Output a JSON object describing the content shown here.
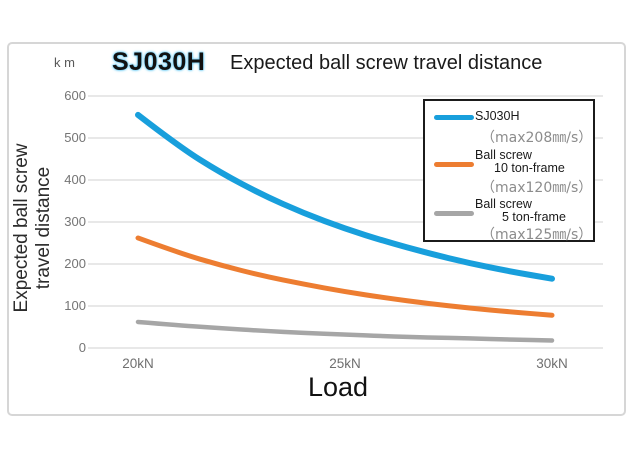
{
  "title": {
    "model": "SJ030H",
    "text": "Expected ball screw travel distance"
  },
  "y_unit_label": "k m",
  "y_axis_title": {
    "line1": "Expected ball screw",
    "line2": "travel distance"
  },
  "axes": {
    "y_ticks": [
      "600",
      "500",
      "400",
      "300",
      "200",
      "100",
      "0"
    ],
    "x_ticks": [
      "20kN",
      "25kN",
      "30kN"
    ],
    "x_label": "Load"
  },
  "colors": {
    "series_blue": "#189fdc",
    "series_orange": "#ed7d31",
    "series_gray": "#a6a6a6",
    "gridline": "#d9d9d9",
    "frame_border": "#d6d6d6",
    "legend_border": "#1b1b1b"
  },
  "legend": {
    "items": [
      {
        "label": "SJ030H",
        "sub": "",
        "max": "（max208㎜/s）",
        "color": "#189fdc"
      },
      {
        "label": "Ball screw",
        "sub": "10 ton-frame",
        "max": "（max120㎜/s）",
        "color": "#ed7d31"
      },
      {
        "label": "Ball screw",
        "sub": "5 ton-frame",
        "max": "（max125㎜/s）",
        "color": "#a6a6a6"
      }
    ]
  },
  "chart_data": {
    "type": "line",
    "title": "SJ030H Expected ball screw travel distance",
    "xlabel": "Load",
    "ylabel": "Expected ball screw travel distance (km)",
    "x_unit": "kN",
    "y_unit": "km",
    "xlim": [
      20,
      30
    ],
    "ylim": [
      0,
      600
    ],
    "x": [
      20,
      21,
      22,
      23,
      24,
      25,
      26,
      27,
      28,
      29,
      30
    ],
    "xtick_labels": [
      "20kN",
      "25kN",
      "30kN"
    ],
    "ytick_values": [
      0,
      100,
      200,
      300,
      400,
      500,
      600
    ],
    "grid": "horizontal",
    "legend_position": "upper right",
    "series": [
      {
        "name": "SJ030H (max208㎜/s)",
        "color": "#189fdc",
        "width": 6,
        "values": [
          555,
          479,
          417,
          365,
          321,
          284,
          253,
          226,
          202,
          182,
          165
        ]
      },
      {
        "name": "Ball screw 10 ton-frame (max120㎜/s)",
        "color": "#ed7d31",
        "width": 5,
        "values": [
          262,
          226,
          197,
          172,
          152,
          134,
          119,
          106,
          95,
          86,
          78
        ]
      },
      {
        "name": "Ball screw 5 ton-frame (max125㎜/s)",
        "color": "#a6a6a6",
        "width": 4.5,
        "values": [
          62,
          54,
          47,
          41,
          36,
          32,
          28,
          25,
          23,
          20,
          18
        ]
      }
    ]
  }
}
